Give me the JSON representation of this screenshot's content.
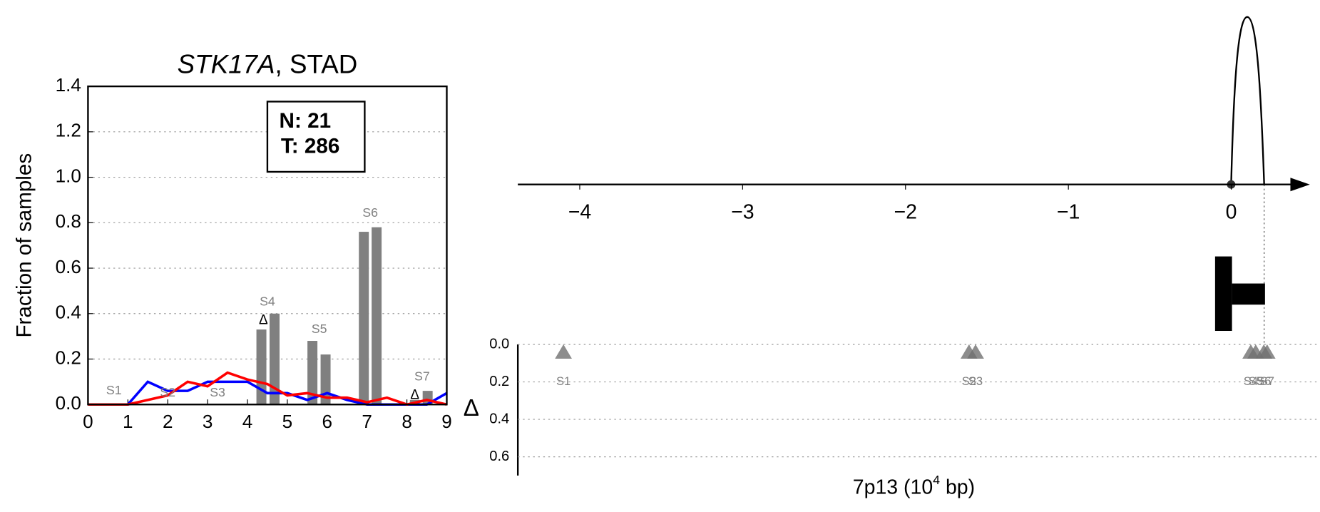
{
  "chart_data": [
    {
      "type": "bar",
      "title": {
        "gene": "STK17A",
        "rest": ", STAD"
      },
      "ylabel": "Fraction of samples",
      "xlim": [
        0,
        9
      ],
      "xticks": [
        0,
        1,
        2,
        3,
        4,
        5,
        6,
        7,
        8,
        9
      ],
      "ylim": [
        0,
        1.4
      ],
      "yticks": [
        {
          "value": 0,
          "label": "0.0"
        },
        0.2,
        0.4,
        0.6,
        0.8,
        {
          "value": 1,
          "label": "1.0"
        },
        1.2,
        1.4
      ],
      "grid": "y",
      "bars": {
        "color": "#808080",
        "x": [
          4.35,
          4.68,
          5.63,
          5.96,
          6.92,
          7.24,
          8.2,
          8.52
        ],
        "values": [
          0.33,
          0.4,
          0.28,
          0.22,
          0.76,
          0.78,
          0.02,
          0.06
        ]
      },
      "line_x": [
        0,
        0.5,
        1,
        1.5,
        2,
        2.5,
        3,
        3.5,
        4,
        4.5,
        5,
        5.5,
        6,
        6.5,
        7,
        7.5,
        8,
        8.5,
        9
      ],
      "lines": [
        {
          "color": "#0000ff",
          "values": [
            0,
            0,
            0,
            0.1,
            0.06,
            0.06,
            0.1,
            0.1,
            0.1,
            0.05,
            0.05,
            0.02,
            0.05,
            0.02,
            0,
            0,
            0,
            0,
            0.05
          ]
        },
        {
          "color": "#ff0000",
          "values": [
            0,
            0,
            0,
            0.02,
            0.04,
            0.1,
            0.08,
            0.14,
            0.11,
            0.09,
            0.04,
            0.05,
            0.03,
            0.03,
            0.01,
            0.03,
            0,
            0.02,
            0
          ]
        }
      ],
      "segments": [
        {
          "label": "S1",
          "x": 0.65,
          "y": 0.06
        },
        {
          "label": "S2",
          "x": 2.0,
          "y": 0.05
        },
        {
          "label": "S3",
          "x": 3.25,
          "y": 0.05
        },
        {
          "label": "S4",
          "x": 4.5,
          "y": 0.45
        },
        {
          "label": "S5",
          "x": 5.8,
          "y": 0.33
        },
        {
          "label": "S6",
          "x": 7.08,
          "y": 0.84
        },
        {
          "label": "S7",
          "x": 8.38,
          "y": 0.12
        }
      ],
      "deltas": [
        {
          "label": "Δ",
          "x": 4.4,
          "y": 0.37
        },
        {
          "label": "Δ",
          "x": 8.2,
          "y": 0.04
        }
      ],
      "counts_box": [
        "N: 21",
        "T: 286"
      ]
    },
    {
      "type": "axis",
      "xlim": [
        -4.38,
        0.55
      ],
      "xticks": [
        {
          "value": -4,
          "label": "−4"
        },
        {
          "value": -3,
          "label": "−3"
        },
        {
          "value": -2,
          "label": "−2"
        },
        {
          "value": -1,
          "label": "−1"
        },
        0
      ]
    },
    {
      "type": "scatter",
      "ylabel": "Δ",
      "xlabel": {
        "base": "7p13 (10",
        "sup": "4",
        "rest": " bp)"
      },
      "xlim": [
        -4.38,
        0.55
      ],
      "ylim": [
        0,
        0.7
      ],
      "yticks": [
        {
          "value": 0,
          "label": "0.0"
        },
        0.2,
        0.4,
        0.6
      ],
      "grid": "y",
      "color": "#707070",
      "x": [
        -4.1,
        -1.61,
        -1.57,
        0.12,
        0.15,
        0.2,
        0.22
      ],
      "values": [
        0.04,
        0.04,
        0.04,
        0.04,
        0.04,
        0.04,
        0.04
      ],
      "labels": [
        "S1",
        "S2",
        "S3",
        "S4",
        "S5",
        "S6",
        "S7"
      ]
    }
  ]
}
